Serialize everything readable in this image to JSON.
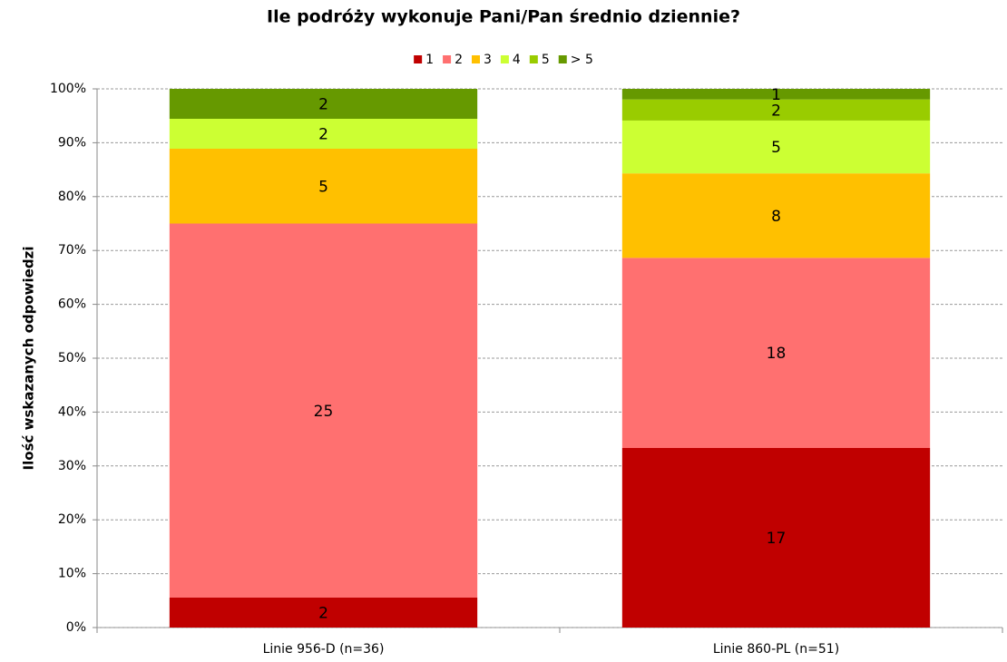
{
  "chart_data": {
    "type": "bar",
    "stack": "percent",
    "title": "Ile podróży wykonuje Pani/Pan średnio dziennie?",
    "y_label": "Ilość wskazanych odpowiedzi",
    "categories": [
      "Linie 956-D (n=36)",
      "Linie 860-PL (n=51)"
    ],
    "series": [
      {
        "name": "1",
        "color": "#c00000",
        "values": [
          2,
          17
        ]
      },
      {
        "name": "2",
        "color": "#ff7070",
        "values": [
          25,
          18
        ]
      },
      {
        "name": "3",
        "color": "#ffc000",
        "values": [
          5,
          8
        ]
      },
      {
        "name": "4",
        "color": "#ccff33",
        "values": [
          2,
          5
        ]
      },
      {
        "name": "5",
        "color": "#99cc00",
        "values": [
          0,
          2
        ]
      },
      {
        "name": "> 5",
        "color": "#669900",
        "values": [
          2,
          1
        ]
      }
    ],
    "ylim": [
      0,
      100
    ],
    "yticks": [
      {
        "value": 0,
        "label": "0%"
      },
      {
        "value": 10,
        "label": "10%"
      },
      {
        "value": 20,
        "label": "20%"
      },
      {
        "value": 30,
        "label": "30%"
      },
      {
        "value": 40,
        "label": "40%"
      },
      {
        "value": 50,
        "label": "50%"
      },
      {
        "value": 60,
        "label": "60%"
      },
      {
        "value": 70,
        "label": "70%"
      },
      {
        "value": 80,
        "label": "80%"
      },
      {
        "value": 90,
        "label": "90%"
      },
      {
        "value": 100,
        "label": "100%"
      }
    ],
    "grid": true,
    "legend": "top"
  }
}
